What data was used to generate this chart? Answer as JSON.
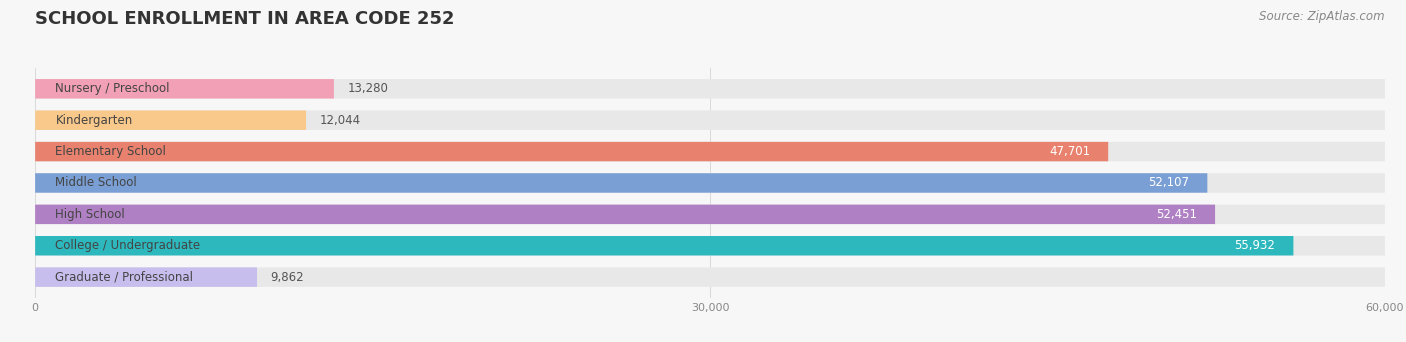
{
  "title": "SCHOOL ENROLLMENT IN AREA CODE 252",
  "source": "Source: ZipAtlas.com",
  "categories": [
    "Nursery / Preschool",
    "Kindergarten",
    "Elementary School",
    "Middle School",
    "High School",
    "College / Undergraduate",
    "Graduate / Professional"
  ],
  "values": [
    13280,
    12044,
    47701,
    52107,
    52451,
    55932,
    9862
  ],
  "bar_colors": [
    "#f2a0b5",
    "#f8c98a",
    "#e8826e",
    "#7a9fd4",
    "#b080c4",
    "#2db8be",
    "#c8beed"
  ],
  "xlim": [
    0,
    60000
  ],
  "xticks": [
    0,
    30000,
    60000
  ],
  "xtick_labels": [
    "0",
    "30,000",
    "60,000"
  ],
  "background_color": "#f7f7f7",
  "bar_background_color": "#e8e8e8",
  "title_fontsize": 13,
  "label_fontsize": 8.5,
  "value_fontsize": 8.5,
  "source_fontsize": 8.5,
  "bar_height": 0.62,
  "bar_gap": 0.38
}
